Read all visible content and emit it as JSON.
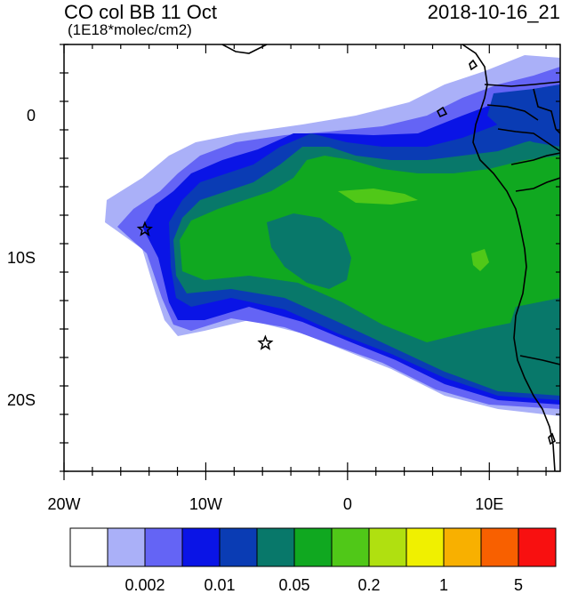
{
  "title": {
    "left": "CO col BB 11 Oct",
    "units": "(1E18*molec/cm2)",
    "right": "2018-10-16_21"
  },
  "axes": {
    "x_ticks": [
      {
        "value": -20,
        "label": "20W"
      },
      {
        "value": -10,
        "label": "10W"
      },
      {
        "value": 0,
        "label": "0"
      },
      {
        "value": 10,
        "label": "10E"
      }
    ],
    "y_ticks": [
      {
        "value": 0,
        "label": "0"
      },
      {
        "value": -10,
        "label": "10S"
      },
      {
        "value": -20,
        "label": "20S"
      }
    ],
    "lon_range": [
      -20,
      15
    ],
    "lat_range": [
      -25,
      5
    ]
  },
  "legend": {
    "colors": [
      "#ffffff",
      "#aab0f8",
      "#6464f5",
      "#0a14e6",
      "#0a3cb4",
      "#08786a",
      "#10a820",
      "#50c818",
      "#b0e010",
      "#f0f000",
      "#f8b000",
      "#f86000",
      "#f81010"
    ],
    "labels": [
      {
        "text": "0.002",
        "after_box": 2
      },
      {
        "text": "0.01",
        "after_box": 4
      },
      {
        "text": "0.05",
        "after_box": 6
      },
      {
        "text": "0.2",
        "after_box": 8
      },
      {
        "text": "1",
        "after_box": 10
      },
      {
        "text": "5",
        "after_box": 12
      }
    ]
  },
  "markers": [
    {
      "name": "star",
      "lon": -14.3,
      "lat": -8
    },
    {
      "name": "star",
      "lon": -5.8,
      "lat": -16
    }
  ]
}
